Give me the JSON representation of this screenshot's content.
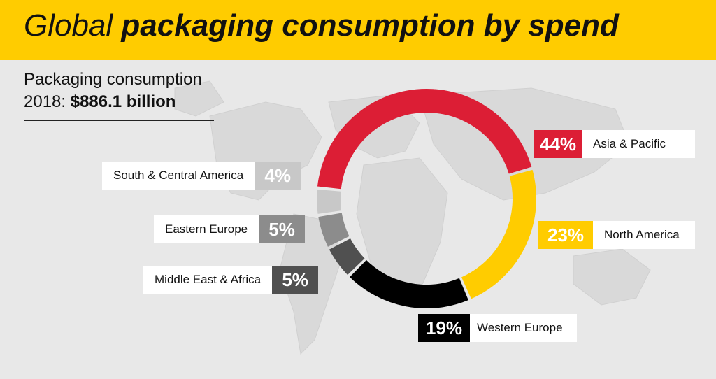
{
  "header": {
    "title_light": "Global",
    "title_bold": "packaging consumption by spend"
  },
  "subtitle": {
    "line1": "Packaging consumption",
    "line2_prefix": "2018:",
    "line2_total": "$886.1 billion"
  },
  "colors": {
    "banner": "#ffcc00",
    "background": "#e8e8e8"
  },
  "chart_data": {
    "type": "pie",
    "donut": true,
    "slices": [
      {
        "label": "Asia & Pacific",
        "percent": 44,
        "display": "44%",
        "color": "#dc1e35"
      },
      {
        "label": "North America",
        "percent": 23,
        "display": "23%",
        "color": "#ffcc00"
      },
      {
        "label": "Western Europe",
        "percent": 19,
        "display": "19%",
        "color": "#000000"
      },
      {
        "label": "Middle East & Africa",
        "percent": 5,
        "display": "5%",
        "color": "#505050"
      },
      {
        "label": "Eastern Europe",
        "percent": 5,
        "display": "5%",
        "color": "#8c8c8c"
      },
      {
        "label": "South & Central America",
        "percent": 4,
        "display": "4%",
        "color": "#c8c8c8"
      }
    ]
  }
}
